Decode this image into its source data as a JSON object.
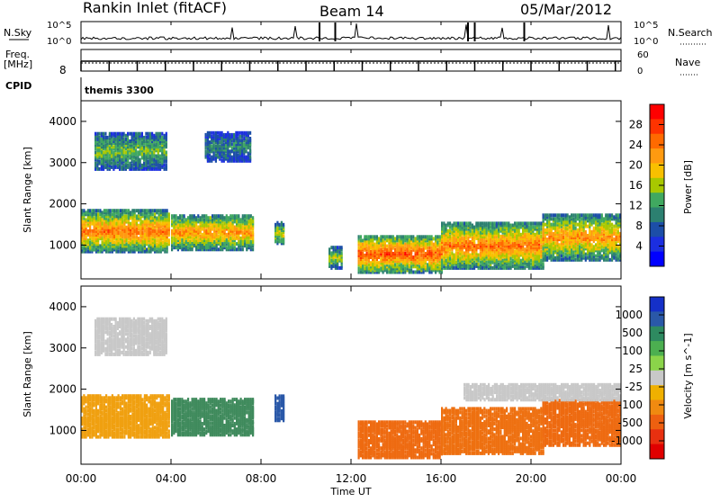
{
  "header": {
    "station": "Rankin Inlet (fitACF)",
    "beam": "Beam 14",
    "date": "05/Mar/2012"
  },
  "top_panels": {
    "nsky_label": "N.Sky",
    "nsky_ticks": [
      "10^5",
      "10^0"
    ],
    "nsearch_label": "N.Search",
    "nsearch_ticks": [
      "10^5",
      "10^0"
    ],
    "freq_label_1": "Freq.",
    "freq_label_2": "[MHz]",
    "freq_ticks": [
      "8"
    ],
    "nave_label": "Nave",
    "nave_ticks": [
      "60",
      "0"
    ],
    "cpid_label": "CPID",
    "cpid_value": "themis 3300"
  },
  "chart_data": [
    {
      "type": "heatmap",
      "panel": "power",
      "ylabel": "Slant Range [km]",
      "y_ticks": [
        1000,
        2000,
        3000,
        4000
      ],
      "ylim": [
        180,
        4500
      ],
      "colorbar_label": "Power [dB]",
      "colorbar_ticks": [
        "28",
        "24",
        "20",
        "16",
        "12",
        "8",
        "4"
      ],
      "colorbar_colors": [
        "#ff0000",
        "#ff3300",
        "#ff6a00",
        "#ff9a10",
        "#f8c000",
        "#a8c800",
        "#40a860",
        "#2c8070",
        "#1c4ea8",
        "#1b2ee0",
        "#0000ff"
      ],
      "clusters": [
        {
          "t0": 0.0,
          "t1": 3.9,
          "r0": 800,
          "r1": 1800,
          "peak": 24
        },
        {
          "t0": 4.0,
          "t1": 7.6,
          "r0": 850,
          "r1": 1700,
          "peak": 22
        },
        {
          "t0": 8.6,
          "t1": 9.0,
          "r0": 1000,
          "r1": 1500,
          "peak": 18
        },
        {
          "t0": 11.0,
          "t1": 11.6,
          "r0": 400,
          "r1": 900,
          "peak": 16
        },
        {
          "t0": 12.3,
          "t1": 16.0,
          "r0": 300,
          "r1": 1200,
          "peak": 26
        },
        {
          "t0": 16.0,
          "t1": 20.5,
          "r0": 400,
          "r1": 1500,
          "peak": 24
        },
        {
          "t0": 20.5,
          "t1": 24.0,
          "r0": 600,
          "r1": 1700,
          "peak": 22
        },
        {
          "t0": 0.6,
          "t1": 3.8,
          "r0": 2800,
          "r1": 3700,
          "peak": 14
        },
        {
          "t0": 5.5,
          "t1": 7.5,
          "r0": 3000,
          "r1": 3700,
          "peak": 10
        }
      ]
    },
    {
      "type": "heatmap",
      "panel": "velocity",
      "ylabel": "Slant Range [km]",
      "y_ticks": [
        1000,
        2000,
        3000,
        4000
      ],
      "ylim": [
        180,
        4500
      ],
      "colorbar_label": "Velocity [m s^-1]",
      "colorbar_ticks": [
        "1000",
        "500",
        "100",
        "25",
        "-25",
        "-100",
        "-500",
        "-1000"
      ],
      "colorbar_colors": [
        "#1530c8",
        "#2a58a8",
        "#2e8a60",
        "#4caf50",
        "#8bd44a",
        "#c8c8c8",
        "#f0b000",
        "#f08a10",
        "#ee6010",
        "#e83010",
        "#e00000"
      ],
      "clusters": [
        {
          "t0": 0.0,
          "t1": 3.9,
          "r0": 800,
          "r1": 1800,
          "color": "#f0a010"
        },
        {
          "t0": 4.0,
          "t1": 7.6,
          "r0": 850,
          "r1": 1750,
          "color": "#3f8a5c"
        },
        {
          "t0": 8.6,
          "t1": 9.0,
          "r0": 1200,
          "r1": 1800,
          "color": "#2a58a8"
        },
        {
          "t0": 12.3,
          "t1": 16.0,
          "r0": 300,
          "r1": 1200,
          "color": "#ee6a10"
        },
        {
          "t0": 16.0,
          "t1": 20.5,
          "r0": 400,
          "r1": 1500,
          "color": "#ee7010"
        },
        {
          "t0": 20.5,
          "t1": 24.0,
          "r0": 600,
          "r1": 1700,
          "color": "#ee6a10"
        },
        {
          "t0": 0.6,
          "t1": 3.8,
          "r0": 2800,
          "r1": 3700,
          "color": "#c8c8c8"
        },
        {
          "t0": 17.0,
          "t1": 24.0,
          "r0": 1700,
          "r1": 2100,
          "color": "#c8c8c8"
        }
      ]
    }
  ],
  "x_axis": {
    "ticks": [
      "00:00",
      "04:00",
      "08:00",
      "12:00",
      "16:00",
      "20:00",
      "00:00"
    ],
    "label": "Time UT"
  }
}
